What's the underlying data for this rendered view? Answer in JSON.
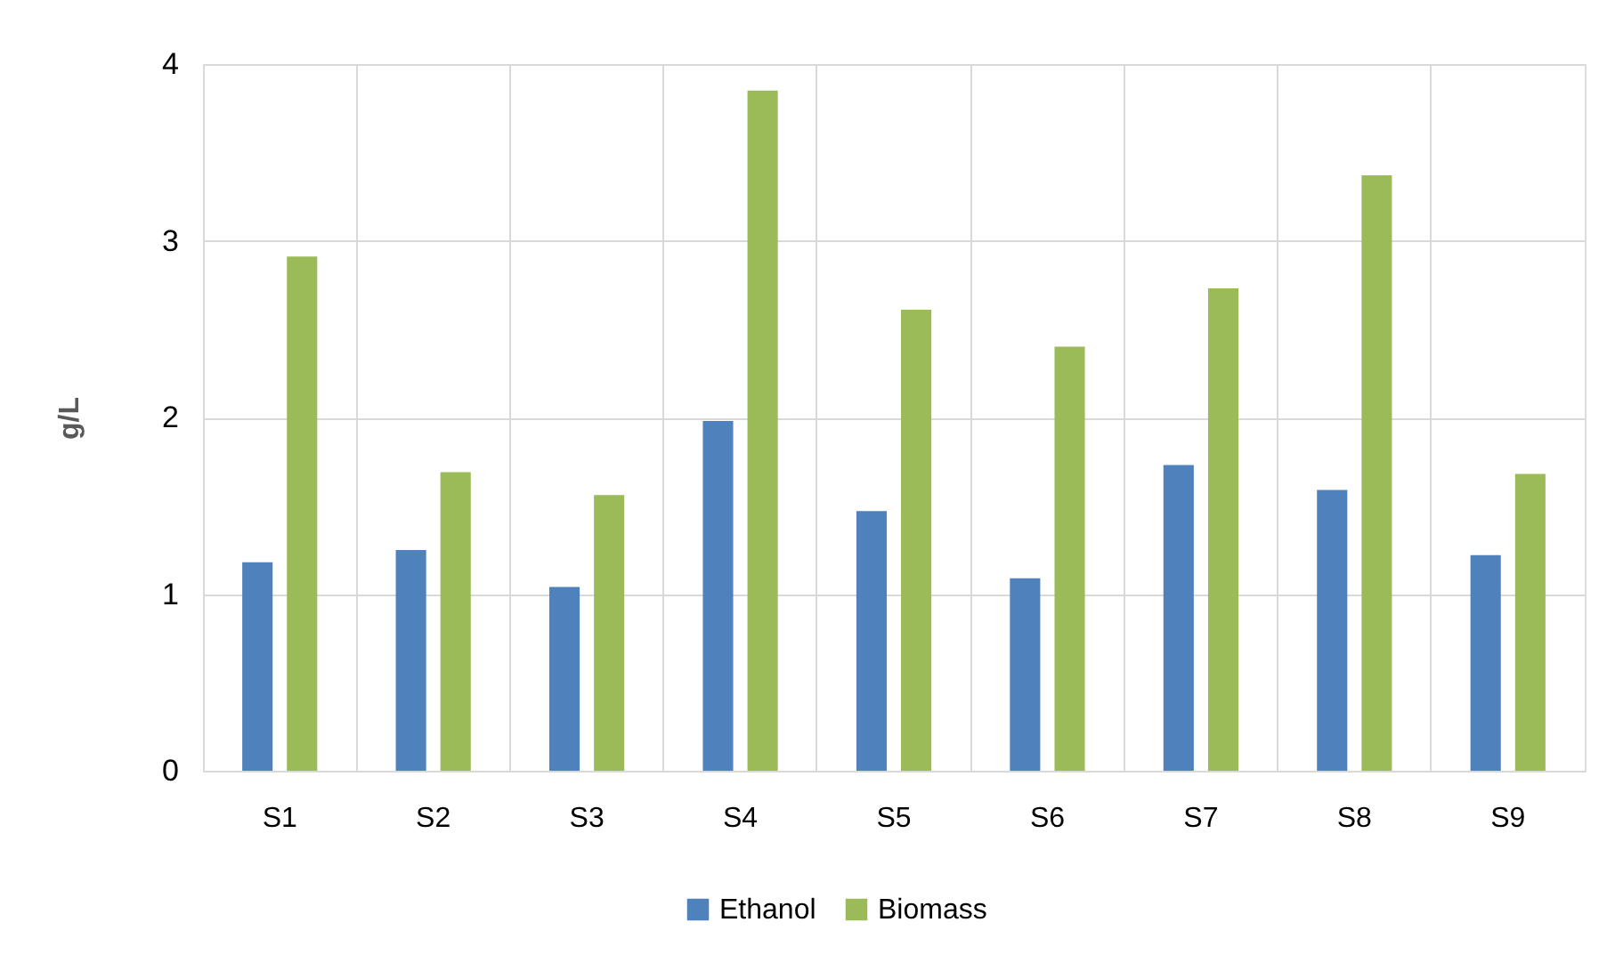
{
  "chart_data": {
    "type": "bar",
    "ylabel": "g/L",
    "categories": [
      "S1",
      "S2",
      "S3",
      "S4",
      "S5",
      "S6",
      "S7",
      "S8",
      "S9"
    ],
    "series": [
      {
        "name": "Ethanol",
        "color": "#4f81bd",
        "values": [
          1.18,
          1.25,
          1.04,
          1.98,
          1.47,
          1.09,
          1.73,
          1.59,
          1.22
        ]
      },
      {
        "name": "Biomass",
        "color": "#9bbb59",
        "values": [
          2.91,
          1.69,
          1.56,
          3.85,
          2.61,
          2.4,
          2.73,
          3.37,
          1.68
        ]
      }
    ],
    "ylim": [
      0,
      4
    ],
    "yticks": [
      0,
      1,
      2,
      3,
      4
    ],
    "grid": true,
    "legend": "bottom"
  }
}
